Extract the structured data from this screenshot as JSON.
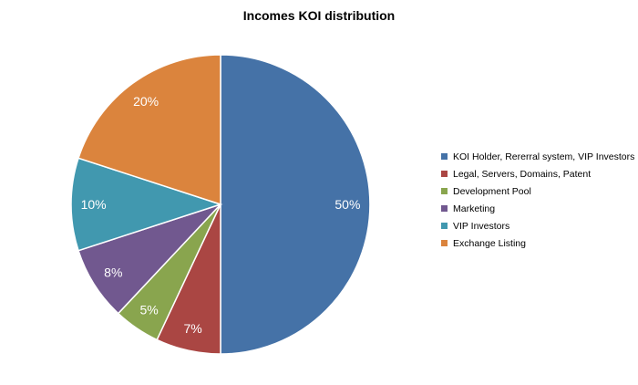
{
  "chart_data": {
    "type": "pie",
    "title": "Incomes KOI distribution",
    "legend_position": "right",
    "slices": [
      {
        "name": "KOI Holder, Rererral system, VIP Investors",
        "value": 50,
        "label": "50%",
        "color": "#4572a7"
      },
      {
        "name": "Legal, Servers, Domains, Patent",
        "value": 7,
        "label": "7%",
        "color": "#aa4643"
      },
      {
        "name": "Development Pool",
        "value": 5,
        "label": "5%",
        "color": "#89a54e"
      },
      {
        "name": "Marketing",
        "value": 8,
        "label": "8%",
        "color": "#71588f"
      },
      {
        "name": "VIP Investors",
        "value": 10,
        "label": "10%",
        "color": "#4198af"
      },
      {
        "name": "Exchange Listing",
        "value": 20,
        "label": "20%",
        "color": "#db843d"
      }
    ]
  }
}
